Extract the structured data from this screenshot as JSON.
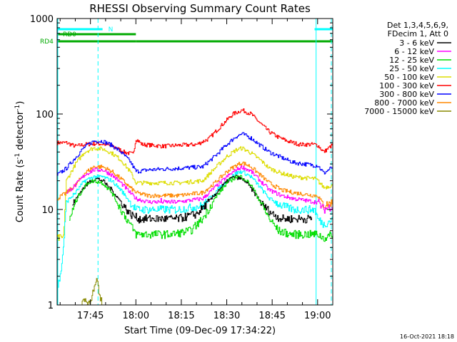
{
  "chart_data": {
    "type": "line",
    "title": "RHESSI Observing Summary Count Rates",
    "xlabel": "Start Time (09-Dec-09 17:34:22)",
    "ylabel_main": "Count Rate (s",
    "ylabel_sup1": "-1",
    "ylabel_mid": " detector",
    "ylabel_sup2": "-1",
    "ylabel_end": ")",
    "yscale": "log",
    "ylim": [
      1,
      1000
    ],
    "xlim_minutes": [
      0,
      91
    ],
    "x_units": "minutes since 17:34:22",
    "yticks": [
      {
        "value": 1,
        "label": "1"
      },
      {
        "value": 10,
        "label": "10"
      },
      {
        "value": 100,
        "label": "100"
      },
      {
        "value": 1000,
        "label": "1000"
      }
    ],
    "xticks": [
      {
        "minute": 11,
        "label": "17:45"
      },
      {
        "minute": 26,
        "label": "18:00"
      },
      {
        "minute": 41,
        "label": "18:15"
      },
      {
        "minute": 56,
        "label": "18:30"
      },
      {
        "minute": 71,
        "label": "18:45"
      },
      {
        "minute": 86,
        "label": "19:00"
      }
    ],
    "legend": {
      "placement": "right",
      "header": [
        "Det 1,3,4,5,6,9,",
        "FDecim 1, Att 0"
      ],
      "entries": [
        {
          "label": "3 - 6 keV",
          "color": "#000000"
        },
        {
          "label": "6 - 12 keV",
          "color": "#ff00ff"
        },
        {
          "label": "12 - 25 keV",
          "color": "#00dd00"
        },
        {
          "label": "25 - 50 keV",
          "color": "#00ffff"
        },
        {
          "label": "50 - 100 keV",
          "color": "#dddd00"
        },
        {
          "label": "100 - 300 keV",
          "color": "#ff0000"
        },
        {
          "label": "300 - 800 keV",
          "color": "#0000ff"
        },
        {
          "label": "800 - 7000 keV",
          "color": "#ff8800"
        },
        {
          "label": "7000 - 15000 keV",
          "color": "#888800"
        }
      ]
    },
    "flags": [
      {
        "label": "N",
        "color": "#00ffff",
        "segments": [
          [
            0,
            15
          ],
          [
            85,
            91
          ]
        ]
      },
      {
        "label": "RD0",
        "color": "#00aa00",
        "segments": [
          [
            0,
            26
          ]
        ]
      },
      {
        "label": "RD4",
        "color": "#00aa00",
        "segments": [
          [
            0,
            26
          ],
          [
            26,
            91
          ]
        ]
      }
    ],
    "markers": [
      {
        "minute": 13.5,
        "style": "dashed",
        "color": "#00ffff"
      },
      {
        "minute": 85.5,
        "style": "solid",
        "color": "#00ffff"
      },
      {
        "minute": 91,
        "style": "dashed",
        "color": "#00ffff"
      }
    ],
    "series": [
      {
        "name": "100 - 300 keV",
        "color": "#ff0000",
        "points": [
          [
            0,
            50
          ],
          [
            3,
            50
          ],
          [
            6,
            46
          ],
          [
            9,
            48
          ],
          [
            13,
            49
          ],
          [
            16,
            48
          ],
          [
            19,
            45
          ],
          [
            22,
            40
          ],
          [
            25,
            38
          ],
          [
            26,
            55
          ],
          [
            28,
            48
          ],
          [
            35,
            46
          ],
          [
            40,
            47
          ],
          [
            46,
            48
          ],
          [
            50,
            55
          ],
          [
            54,
            75
          ],
          [
            58,
            100
          ],
          [
            61,
            110
          ],
          [
            64,
            100
          ],
          [
            67,
            80
          ],
          [
            70,
            65
          ],
          [
            73,
            57
          ],
          [
            76,
            52
          ],
          [
            80,
            48
          ],
          [
            85,
            48
          ],
          [
            86,
            47
          ],
          [
            88,
            40
          ],
          [
            91,
            48
          ]
        ]
      },
      {
        "name": "300 - 800 keV",
        "color": "#0000ff",
        "points": [
          [
            0,
            23
          ],
          [
            3,
            27
          ],
          [
            6,
            35
          ],
          [
            9,
            45
          ],
          [
            12,
            52
          ],
          [
            15,
            52
          ],
          [
            18,
            47
          ],
          [
            21,
            40
          ],
          [
            24,
            32
          ],
          [
            26,
            25
          ],
          [
            30,
            26
          ],
          [
            40,
            27
          ],
          [
            48,
            28
          ],
          [
            52,
            36
          ],
          [
            56,
            48
          ],
          [
            59,
            58
          ],
          [
            61,
            62
          ],
          [
            64,
            56
          ],
          [
            67,
            47
          ],
          [
            70,
            40
          ],
          [
            74,
            35
          ],
          [
            78,
            31
          ],
          [
            85,
            29
          ],
          [
            86,
            29
          ],
          [
            88,
            24
          ],
          [
            91,
            28
          ]
        ]
      },
      {
        "name": "50 - 100 keV",
        "color": "#dddd00",
        "points": [
          [
            0,
            5
          ],
          [
            2,
            5
          ],
          [
            3,
            20
          ],
          [
            6,
            30
          ],
          [
            9,
            40
          ],
          [
            12,
            44
          ],
          [
            15,
            43
          ],
          [
            18,
            39
          ],
          [
            21,
            33
          ],
          [
            24,
            25
          ],
          [
            26,
            19
          ],
          [
            30,
            19
          ],
          [
            40,
            19
          ],
          [
            48,
            20
          ],
          [
            52,
            27
          ],
          [
            56,
            36
          ],
          [
            59,
            42
          ],
          [
            61,
            44
          ],
          [
            64,
            39
          ],
          [
            67,
            33
          ],
          [
            70,
            27
          ],
          [
            74,
            24
          ],
          [
            78,
            22
          ],
          [
            85,
            21
          ],
          [
            86,
            20
          ],
          [
            88,
            17
          ],
          [
            91,
            18
          ]
        ]
      },
      {
        "name": "800 - 7000 keV",
        "color": "#ff8800",
        "points": [
          [
            0,
            13
          ],
          [
            3,
            15
          ],
          [
            6,
            18
          ],
          [
            9,
            24
          ],
          [
            12,
            28
          ],
          [
            15,
            28
          ],
          [
            18,
            25
          ],
          [
            21,
            21
          ],
          [
            24,
            17
          ],
          [
            26,
            15
          ],
          [
            30,
            14
          ],
          [
            40,
            14
          ],
          [
            48,
            15
          ],
          [
            52,
            19
          ],
          [
            56,
            25
          ],
          [
            59,
            29
          ],
          [
            61,
            31
          ],
          [
            64,
            28
          ],
          [
            67,
            23
          ],
          [
            70,
            19
          ],
          [
            74,
            16
          ],
          [
            78,
            15
          ],
          [
            85,
            14
          ],
          [
            86,
            14
          ],
          [
            88,
            11
          ],
          [
            91,
            12
          ]
        ]
      },
      {
        "name": "6 - 12 keV",
        "color": "#ff00ff",
        "points": [
          [
            3,
            15
          ],
          [
            6,
            18
          ],
          [
            9,
            23
          ],
          [
            12,
            26
          ],
          [
            15,
            26
          ],
          [
            18,
            23
          ],
          [
            21,
            19
          ],
          [
            24,
            15
          ],
          [
            26,
            13
          ],
          [
            30,
            12
          ],
          [
            40,
            12
          ],
          [
            48,
            13
          ],
          [
            52,
            17
          ],
          [
            56,
            22
          ],
          [
            59,
            26
          ],
          [
            61,
            28
          ],
          [
            64,
            25
          ],
          [
            67,
            20
          ],
          [
            70,
            16
          ],
          [
            74,
            14
          ],
          [
            78,
            13
          ],
          [
            85,
            12
          ],
          [
            86,
            12
          ],
          [
            88,
            10
          ],
          [
            91,
            11
          ]
        ]
      },
      {
        "name": "25 - 50 keV",
        "color": "#00ffff",
        "points": [
          [
            0,
            1.5
          ],
          [
            1,
            2
          ],
          [
            2,
            4
          ],
          [
            3,
            12
          ],
          [
            6,
            15
          ],
          [
            9,
            20
          ],
          [
            12,
            22
          ],
          [
            15,
            22
          ],
          [
            18,
            20
          ],
          [
            21,
            16
          ],
          [
            24,
            12
          ],
          [
            26,
            10
          ],
          [
            30,
            10
          ],
          [
            40,
            10
          ],
          [
            48,
            11
          ],
          [
            52,
            15
          ],
          [
            56,
            20
          ],
          [
            59,
            24
          ],
          [
            61,
            25
          ],
          [
            64,
            22
          ],
          [
            67,
            17
          ],
          [
            70,
            13
          ],
          [
            74,
            11
          ],
          [
            78,
            10
          ],
          [
            85,
            10
          ],
          [
            86,
            8
          ],
          [
            88,
            7
          ],
          [
            91,
            8
          ]
        ]
      },
      {
        "name": "3 - 6 keV",
        "color": "#000000",
        "points": [
          [
            5,
            11
          ],
          [
            8,
            16
          ],
          [
            11,
            20
          ],
          [
            13,
            21
          ],
          [
            15,
            20
          ],
          [
            18,
            16
          ],
          [
            21,
            12
          ],
          [
            24,
            9
          ],
          [
            27,
            8
          ],
          [
            32,
            8
          ],
          [
            40,
            8
          ],
          [
            46,
            9
          ],
          [
            50,
            12
          ],
          [
            54,
            17
          ],
          [
            57,
            21
          ],
          [
            59,
            22
          ],
          [
            62,
            20
          ],
          [
            65,
            15
          ],
          [
            68,
            11
          ],
          [
            71,
            9
          ],
          [
            74,
            8
          ],
          [
            78,
            8
          ],
          [
            84,
            8
          ]
        ]
      },
      {
        "name": "12 - 25 keV",
        "color": "#00dd00",
        "points": [
          [
            4,
            8
          ],
          [
            7,
            14
          ],
          [
            10,
            19
          ],
          [
            12,
            20
          ],
          [
            15,
            19
          ],
          [
            18,
            15
          ],
          [
            21,
            10
          ],
          [
            24,
            7
          ],
          [
            26,
            5.5
          ],
          [
            30,
            5.5
          ],
          [
            38,
            5.5
          ],
          [
            44,
            6
          ],
          [
            48,
            8
          ],
          [
            52,
            13
          ],
          [
            56,
            19
          ],
          [
            59,
            22
          ],
          [
            61,
            22
          ],
          [
            64,
            18
          ],
          [
            67,
            12
          ],
          [
            70,
            8
          ],
          [
            73,
            6
          ],
          [
            77,
            5.5
          ],
          [
            85,
            5.5
          ],
          [
            86,
            5.5
          ],
          [
            88,
            5
          ],
          [
            91,
            5.5
          ]
        ]
      },
      {
        "name": "7000 - 15000 keV",
        "color": "#888800",
        "points": [
          [
            8,
            1
          ],
          [
            9,
            1.2
          ],
          [
            10,
            1
          ],
          [
            12,
            1.4
          ],
          [
            13,
            1.8
          ],
          [
            14,
            1.2
          ],
          [
            15,
            1
          ]
        ]
      }
    ]
  },
  "footer": {
    "timestamp": "16-Oct-2021 18:18"
  }
}
